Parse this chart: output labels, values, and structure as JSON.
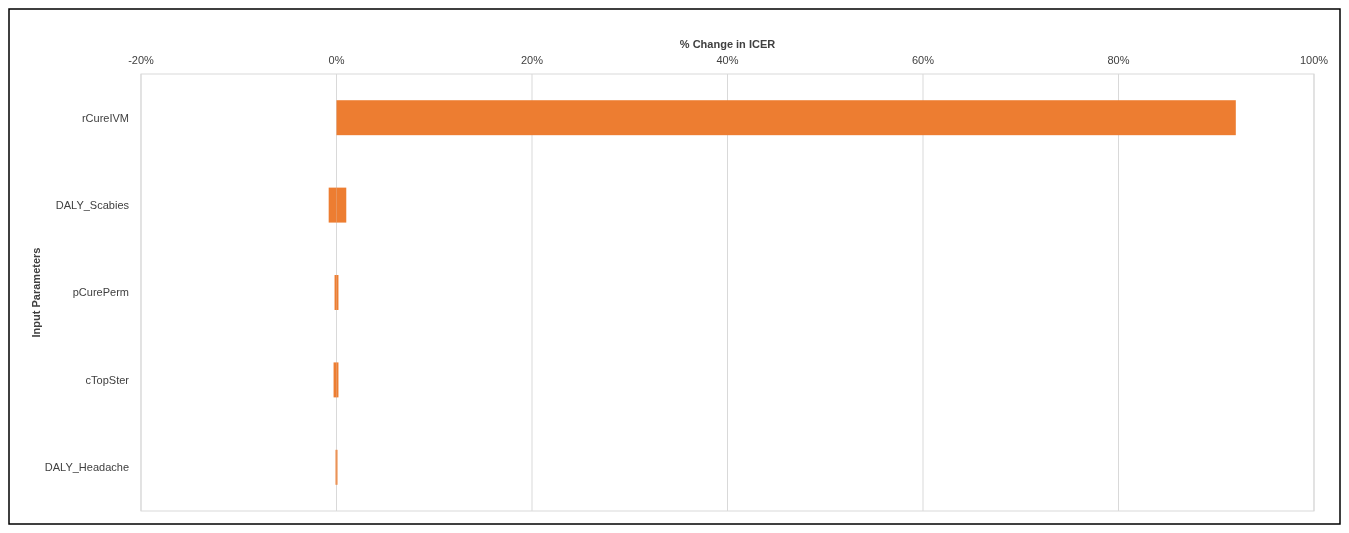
{
  "chart_data": {
    "type": "bar",
    "orientation": "horizontal",
    "stacked": true,
    "xlabel": "% Change in ICER",
    "ylabel": "Input Parameters",
    "categories": [
      "rCureIVM",
      "DALY_Scabies",
      "pCurePerm",
      "cTopSter",
      "DALY_Headache"
    ],
    "series": [
      {
        "color": "#ed7d31",
        "values": [
          0,
          -0.8,
          -0.2,
          -0.3,
          -0.1
        ]
      },
      {
        "color": "#ed7d31",
        "values": [
          92,
          1.0,
          0.2,
          0.2,
          0.1
        ]
      }
    ],
    "xlim": [
      -20,
      100
    ],
    "xticks": [
      {
        "value": -20,
        "label": "-20%"
      },
      {
        "value": 0,
        "label": "0%"
      },
      {
        "value": 20,
        "label": "20%"
      },
      {
        "value": 40,
        "label": "40%"
      },
      {
        "value": 60,
        "label": "60%"
      },
      {
        "value": 80,
        "label": "80%"
      },
      {
        "value": 100,
        "label": "100%"
      }
    ],
    "grid": "x"
  }
}
